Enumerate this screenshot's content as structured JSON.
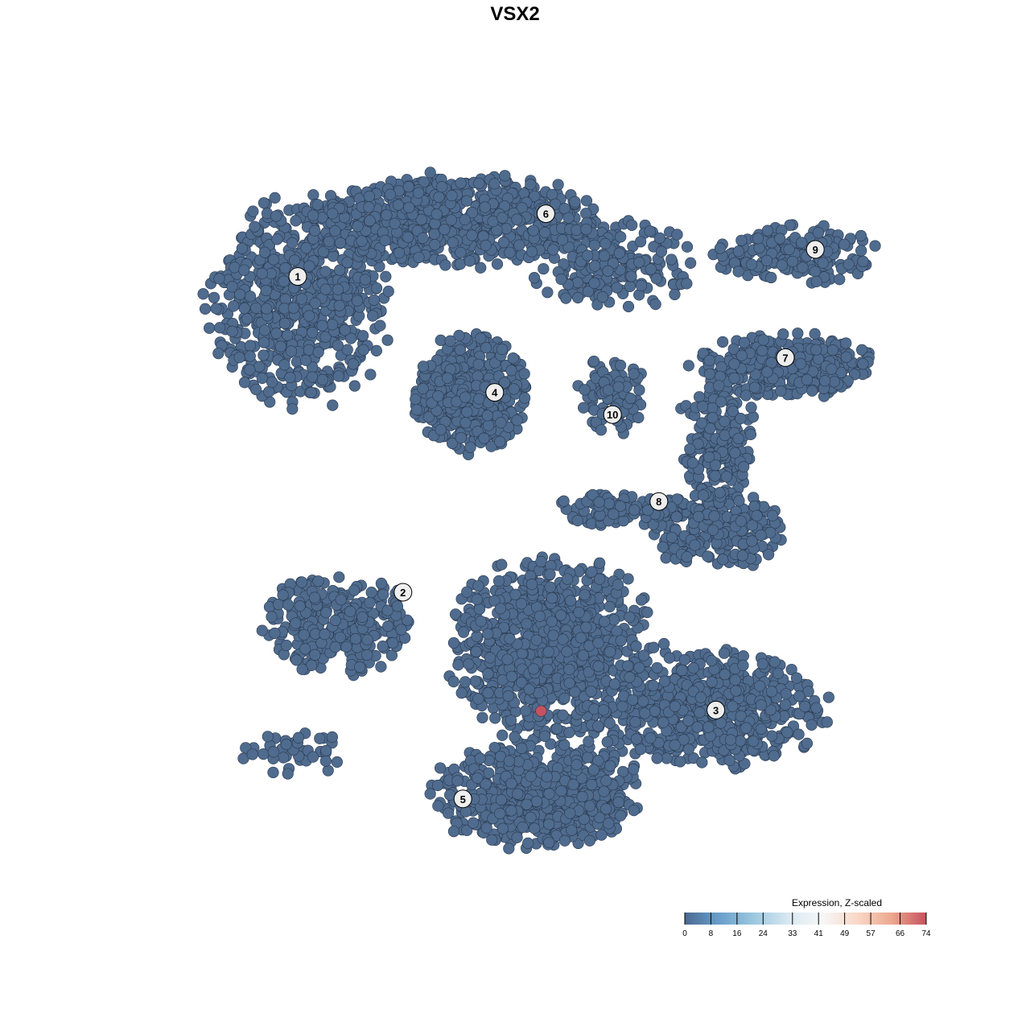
{
  "chart_data": {
    "type": "scatter",
    "title": "VSX2",
    "xlabel": "",
    "ylabel": "",
    "xlim": [
      -37,
      41
    ],
    "ylim": [
      -38,
      38
    ],
    "grid": false,
    "point_color_low": "#4f6b8e",
    "point_stroke": "#2b3a4e",
    "clusters": [
      {
        "id": "1",
        "label_pos": [
          -22.5,
          24.7
        ],
        "blobs": [
          {
            "center": [
              -22.5,
              22
            ],
            "spread": [
              7,
              8
            ],
            "n": 700
          }
        ]
      },
      {
        "id": "6",
        "label_pos": [
          3.2,
          31.2
        ],
        "blobs": [
          {
            "center": [
              -6,
              30.5
            ],
            "spread": [
              11,
              3.5
            ],
            "n": 700
          },
          {
            "center": [
              10,
              26
            ],
            "spread": [
              6,
              3.5
            ],
            "n": 200
          }
        ]
      },
      {
        "id": "4",
        "label_pos": [
          -2.1,
          12.7
        ],
        "blobs": [
          {
            "center": [
              -4.5,
              12.5
            ],
            "spread": [
              4.5,
              4.5
            ],
            "n": 450
          }
        ]
      },
      {
        "id": "10",
        "label_pos": [
          10.1,
          10.4
        ],
        "blobs": [
          {
            "center": [
              10,
              12.5
            ],
            "spread": [
              2.5,
              3
            ],
            "n": 90
          }
        ]
      },
      {
        "id": "9",
        "label_pos": [
          31.1,
          27.5
        ],
        "blobs": [
          {
            "center": [
              29,
              27
            ],
            "spread": [
              6,
              2.2
            ],
            "n": 200
          }
        ]
      },
      {
        "id": "7",
        "label_pos": [
          28,
          16.3
        ],
        "blobs": [
          {
            "center": [
              28,
              15.5
            ],
            "spread": [
              7,
              2.5
            ],
            "n": 320
          },
          {
            "center": [
              21,
              8
            ],
            "spread": [
              3,
              5
            ],
            "n": 200
          }
        ]
      },
      {
        "id": "8",
        "label_pos": [
          14.9,
          1.4
        ],
        "blobs": [
          {
            "center": [
              21,
              -1.5
            ],
            "spread": [
              5.5,
              3
            ],
            "n": 250
          },
          {
            "center": [
              11,
              0.5
            ],
            "spread": [
              5,
              1.3
            ],
            "n": 90
          }
        ]
      },
      {
        "id": "2",
        "label_pos": [
          -11.6,
          -8
        ],
        "blobs": [
          {
            "center": [
              -18.5,
              -11
            ],
            "spread": [
              6,
              4
            ],
            "n": 330
          },
          {
            "center": [
              -23,
              -24.5
            ],
            "spread": [
              4,
              1.8
            ],
            "n": 40
          }
        ]
      },
      {
        "id": "3",
        "label_pos": [
          20.8,
          -20.2
        ],
        "blobs": [
          {
            "center": [
              20,
              -20
            ],
            "spread": [
              9,
              4.5
            ],
            "n": 650
          }
        ]
      },
      {
        "id": "5",
        "label_pos": [
          -5.4,
          -29.4
        ],
        "blobs": [
          {
            "center": [
              2.5,
              -29
            ],
            "spread": [
              8,
              4.2
            ],
            "n": 650
          },
          {
            "center": [
              4,
              -14
            ],
            "spread": [
              8,
              7
            ],
            "n": 950
          }
        ]
      }
    ],
    "highlighted_points": [
      {
        "x": 2.7,
        "y": -20.3,
        "value": 74
      }
    ],
    "colorbar": {
      "title": "Expression, Z-scaled",
      "ticks": [
        "0",
        "8",
        "16",
        "24",
        "33",
        "41",
        "49",
        "57",
        "66",
        "74"
      ],
      "range": [
        0,
        74
      ],
      "colors": [
        "#4a6991",
        "#6a9fcb",
        "#9cc8e0",
        "#d8e8f2",
        "#f7f7f7",
        "#f9d7c7",
        "#eda88f",
        "#c6525f"
      ],
      "placement": "bottom-right"
    }
  }
}
